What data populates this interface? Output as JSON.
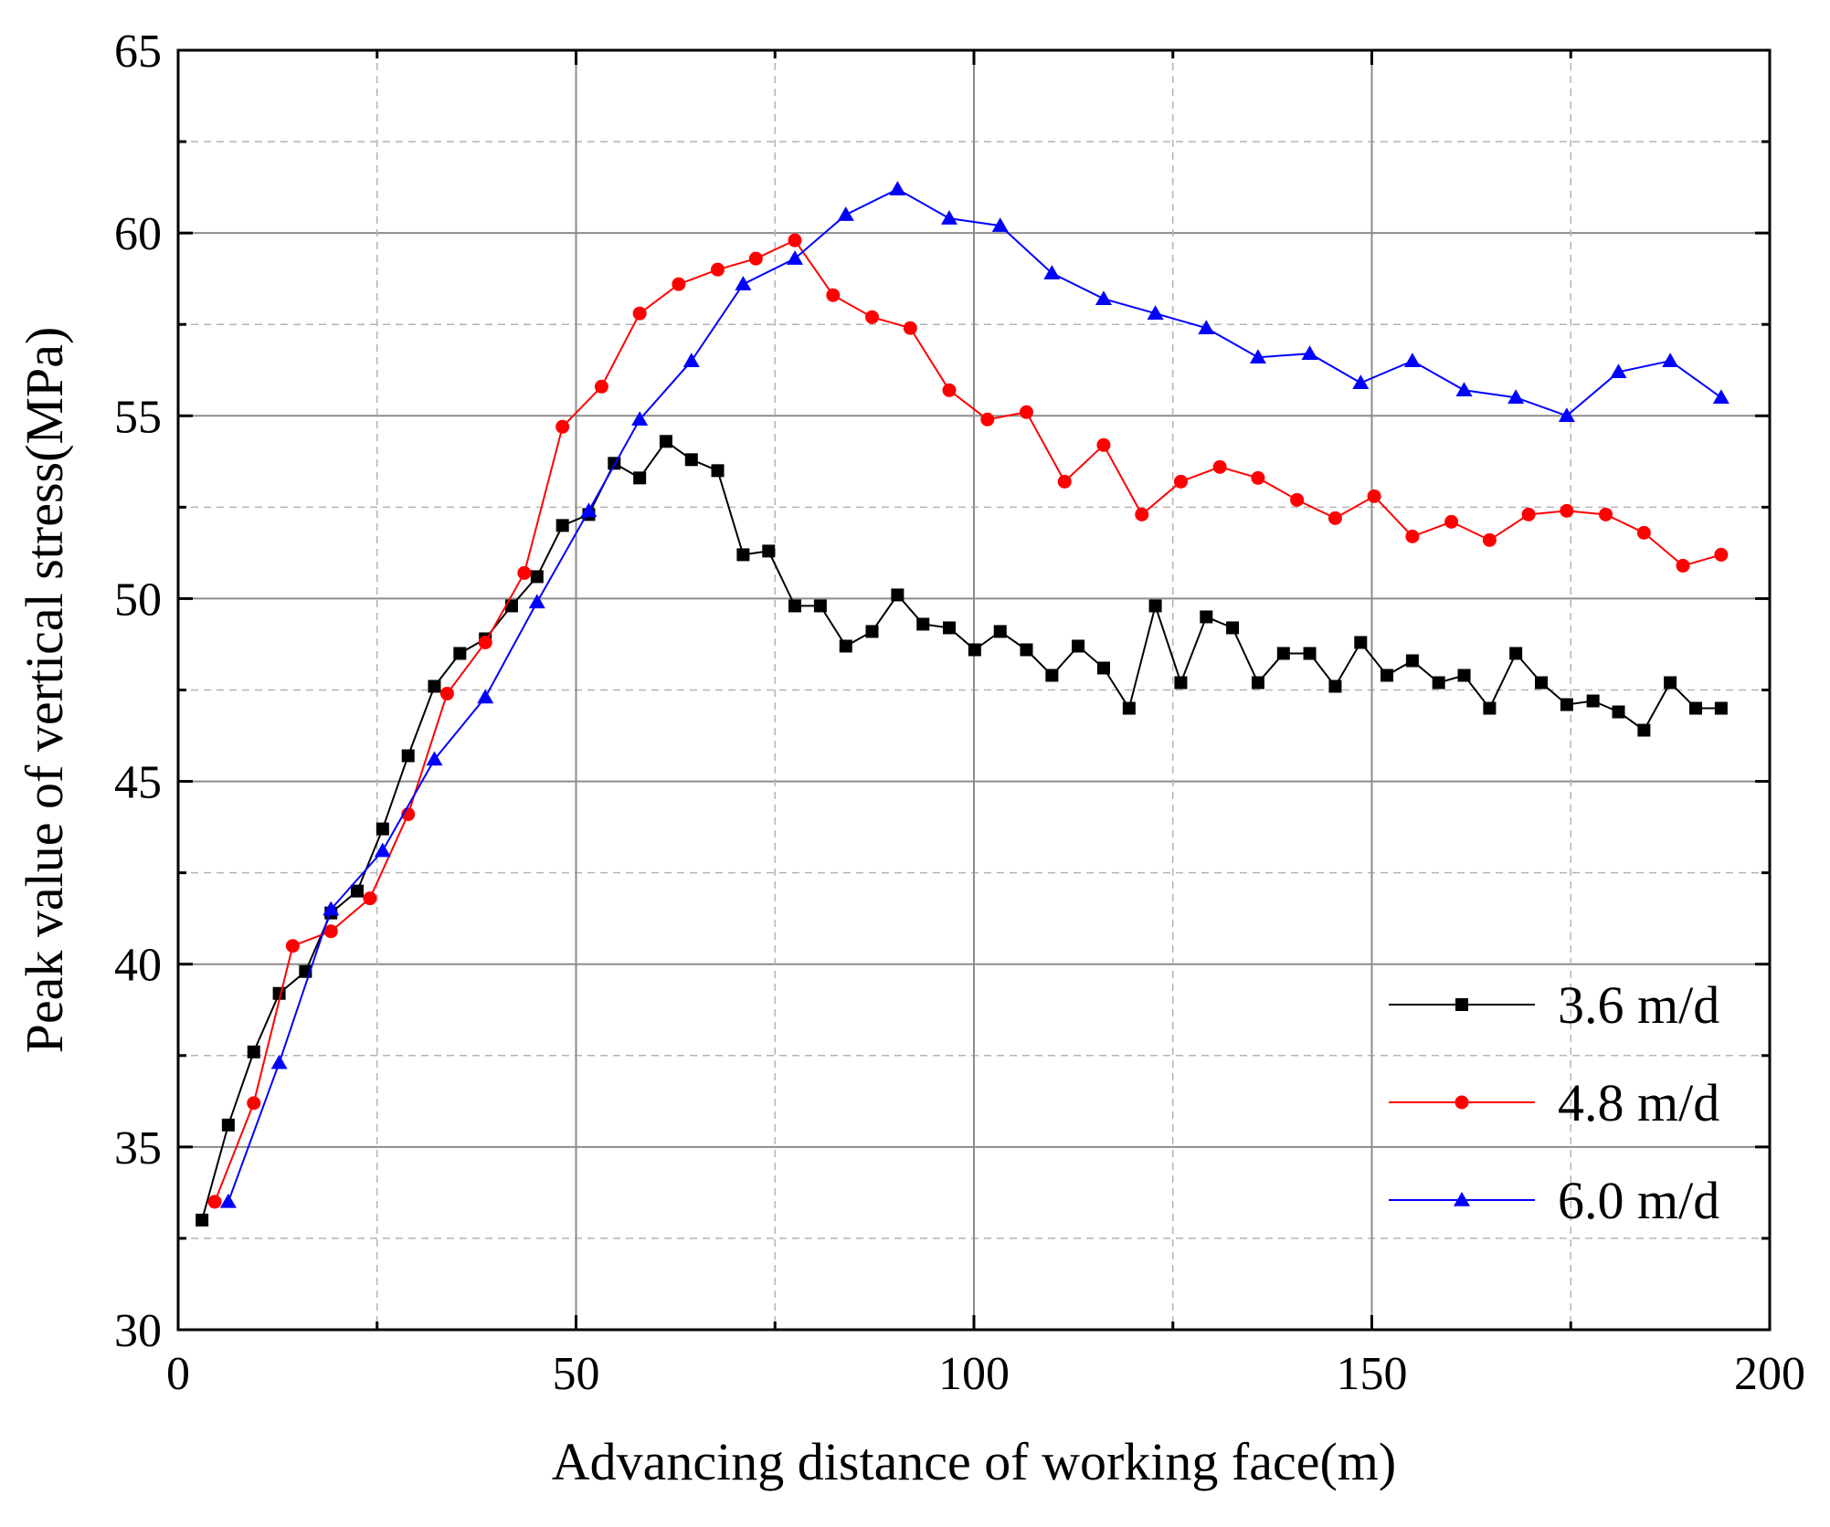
{
  "chart_data": {
    "type": "line",
    "title": "",
    "xlabel": "Advancing distance of working face(m)",
    "ylabel": "Peak value of vertical stress(MPa)",
    "xlim": [
      0,
      200
    ],
    "ylim": [
      30,
      65
    ],
    "x_ticks": [
      "0",
      "50",
      "100",
      "150",
      "200"
    ],
    "y_ticks": [
      "30",
      "35",
      "40",
      "45",
      "50",
      "55",
      "60",
      "65"
    ],
    "grid": true,
    "legend_position": "bottom-right",
    "series": [
      {
        "name": "3.6 m/d",
        "color": "#000000",
        "marker": "square",
        "x": [
          3,
          6.3,
          9.5,
          12.7,
          16,
          19.2,
          22.5,
          25.7,
          28.9,
          32.2,
          35.4,
          38.6,
          41.9,
          45.1,
          48.3,
          51.6,
          54.8,
          58,
          61.3,
          64.5,
          67.8,
          71,
          74.2,
          77.5,
          80.7,
          83.9,
          87.2,
          90.4,
          93.6,
          96.9,
          100.1,
          103.3,
          106.6,
          109.8,
          113.1,
          116.3,
          119.5,
          122.8,
          126,
          129.2,
          132.5,
          135.7,
          138.9,
          142.2,
          145.4,
          148.6,
          151.9,
          155.1,
          158.4,
          161.6,
          164.8,
          168.1,
          171.3,
          174.5,
          177.8,
          181,
          184.2,
          187.5,
          190.7,
          193.9
        ],
        "y": [
          33,
          35.6,
          37.6,
          39.2,
          39.8,
          41.4,
          42,
          43.7,
          45.7,
          47.6,
          48.5,
          48.9,
          49.8,
          50.6,
          52,
          52.3,
          53.7,
          53.3,
          54.3,
          53.8,
          53.5,
          51.2,
          51.3,
          49.8,
          49.8,
          48.7,
          49.1,
          50.1,
          49.3,
          49.2,
          48.6,
          49.1,
          48.6,
          47.9,
          48.7,
          48.1,
          47,
          49.8,
          47.7,
          49.5,
          49.2,
          47.7,
          48.5,
          48.5,
          47.6,
          48.8,
          47.9,
          48.3,
          47.7,
          47.9,
          47,
          48.5,
          47.7,
          47.1,
          47.2,
          46.9,
          46.4,
          47.7,
          47,
          47
        ]
      },
      {
        "name": "4.8 m/d",
        "color": "#ff0000",
        "marker": "circle",
        "x": [
          4.6,
          9.5,
          14.4,
          19.2,
          24.1,
          28.9,
          33.8,
          38.6,
          43.5,
          48.3,
          53.2,
          58,
          62.9,
          67.8,
          72.6,
          77.5,
          82.3,
          87.2,
          92,
          96.9,
          101.7,
          106.6,
          111.4,
          116.3,
          121.1,
          126,
          130.9,
          135.7,
          140.6,
          145.4,
          150.3,
          155.1,
          160,
          164.8,
          169.7,
          174.5,
          179.4,
          184.2,
          189.1,
          193.9
        ],
        "y": [
          33.5,
          36.2,
          40.5,
          40.9,
          41.8,
          44.1,
          47.4,
          48.8,
          50.7,
          54.7,
          55.8,
          57.8,
          58.6,
          59,
          59.3,
          59.8,
          58.3,
          57.7,
          57.4,
          55.7,
          54.9,
          55.1,
          53.2,
          54.2,
          52.3,
          53.2,
          53.6,
          53.3,
          52.7,
          52.2,
          52.8,
          51.7,
          52.1,
          51.6,
          52.3,
          52.4,
          52.3,
          51.8,
          50.9,
          51.2
        ]
      },
      {
        "name": "6.0 m/d",
        "color": "#0000ff",
        "marker": "triangle",
        "x": [
          6.3,
          12.7,
          19.2,
          25.7,
          32.2,
          38.6,
          45.1,
          51.6,
          58,
          64.5,
          71,
          77.5,
          83.9,
          90.4,
          96.9,
          103.3,
          109.8,
          116.3,
          122.8,
          129.2,
          135.7,
          142.2,
          148.6,
          155.1,
          161.6,
          168.1,
          174.5,
          181,
          187.5,
          193.9
        ],
        "y": [
          33.5,
          37.3,
          41.5,
          43.1,
          45.6,
          47.3,
          49.9,
          52.4,
          54.9,
          56.5,
          58.6,
          59.3,
          60.5,
          61.2,
          60.4,
          60.2,
          58.9,
          58.2,
          57.8,
          57.4,
          56.6,
          56.7,
          55.9,
          56.5,
          55.7,
          55.5,
          55,
          56.2,
          56.5,
          55.5
        ]
      }
    ]
  }
}
